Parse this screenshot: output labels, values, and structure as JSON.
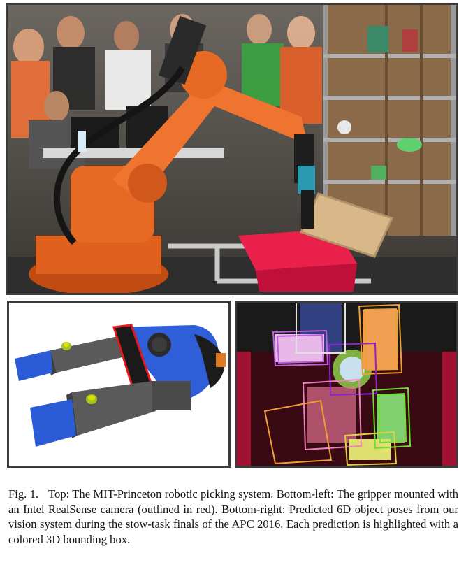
{
  "figure": {
    "label": "Fig. 1.",
    "caption": "Top: The MIT-Princeton robotic picking system. Bottom-left: The gripper mounted with an Intel RealSense camera (outlined in red). Bottom-right: Predicted 6D object poses from our vision system during the stow-task finals of the APC 2016. Each prediction is highlighted with a colored 3D bounding box."
  },
  "colors": {
    "robot_orange": "#e0601e",
    "camera_outline": "#e01818",
    "gripper_blue": "#2b5bd6",
    "tote_red": "#d8153a",
    "box_colors": [
      "#c060e0",
      "#e0e0e0",
      "#f0a030",
      "#9020d0",
      "#70e030",
      "#f080c0",
      "#e0d040"
    ]
  }
}
